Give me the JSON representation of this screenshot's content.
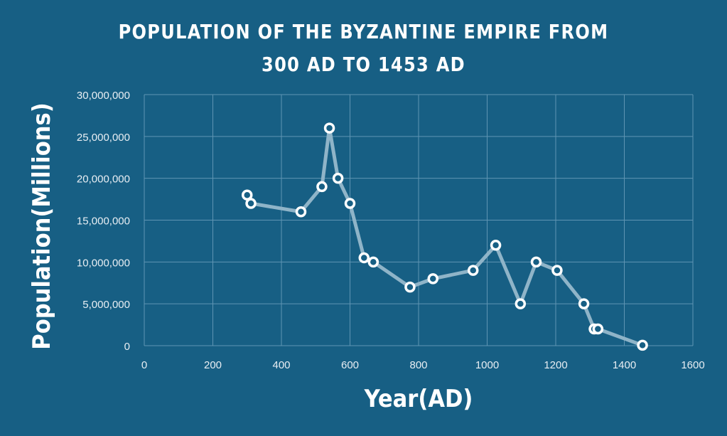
{
  "chart_data": {
    "type": "line",
    "title_line1": "POPULATION OF THE BYZANTINE EMPIRE FROM",
    "title_line2": "300 AD TO 1453 AD",
    "xlabel": "Year(AD)",
    "ylabel": "Population(Millions)",
    "xlim": [
      0,
      1600
    ],
    "ylim": [
      0,
      30000000
    ],
    "grid": true,
    "x_ticks": [
      "0",
      "200",
      "400",
      "600",
      "800",
      "1000",
      "1200",
      "1400",
      "1600"
    ],
    "y_ticks": [
      "0",
      "5,000,000",
      "10,000,000",
      "15,000,000",
      "20,000,000",
      "25,000,000",
      "30,000,000"
    ],
    "series": [
      {
        "name": "Population",
        "points": [
          {
            "x": 300,
            "y": 18000000
          },
          {
            "x": 311,
            "y": 17000000
          },
          {
            "x": 457,
            "y": 16000000
          },
          {
            "x": 518,
            "y": 19000000
          },
          {
            "x": 540,
            "y": 26000000
          },
          {
            "x": 565,
            "y": 20000000
          },
          {
            "x": 600,
            "y": 17000000
          },
          {
            "x": 641,
            "y": 10500000
          },
          {
            "x": 668,
            "y": 10000000
          },
          {
            "x": 775,
            "y": 7000000
          },
          {
            "x": 842,
            "y": 8000000
          },
          {
            "x": 959,
            "y": 9000000
          },
          {
            "x": 1025,
            "y": 12000000
          },
          {
            "x": 1097,
            "y": 5000000
          },
          {
            "x": 1143,
            "y": 10000000
          },
          {
            "x": 1204,
            "y": 9000000
          },
          {
            "x": 1282,
            "y": 5000000
          },
          {
            "x": 1312,
            "y": 2000000
          },
          {
            "x": 1323,
            "y": 2000000
          },
          {
            "x": 1453,
            "y": 50000
          }
        ]
      }
    ],
    "colors": {
      "background": "#175f84",
      "line": "#8fb4c8",
      "marker_stroke": "#ffffff",
      "grid": "#5f95b3"
    }
  }
}
